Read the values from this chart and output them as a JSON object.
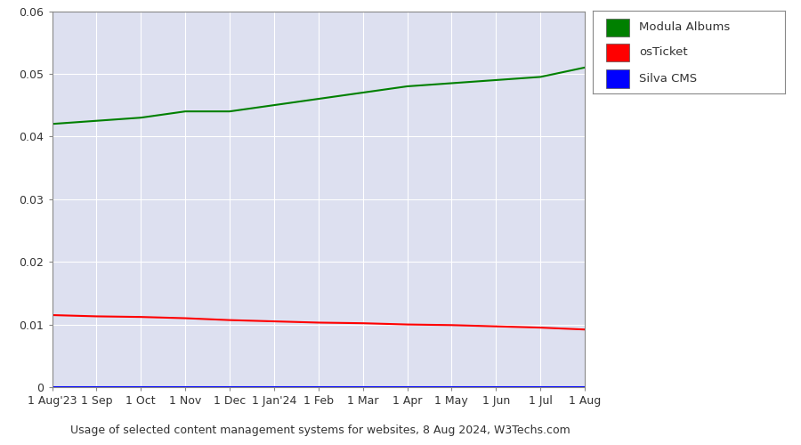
{
  "title": "Usage of selected content management systems for websites, 8 Aug 2024, W3Techs.com",
  "x_labels": [
    "1 Aug'23",
    "1 Sep",
    "1 Oct",
    "1 Nov",
    "1 Dec",
    "1 Jan'24",
    "1 Feb",
    "1 Mar",
    "1 Apr",
    "1 May",
    "1 Jun",
    "1 Jul",
    "1 Aug"
  ],
  "modula_albums": [
    0.042,
    0.0425,
    0.043,
    0.044,
    0.044,
    0.045,
    0.046,
    0.047,
    0.048,
    0.0485,
    0.049,
    0.0495,
    0.051
  ],
  "osticket": [
    0.0115,
    0.0113,
    0.0112,
    0.011,
    0.0107,
    0.0105,
    0.0103,
    0.0102,
    0.01,
    0.0099,
    0.0097,
    0.0095,
    0.0092
  ],
  "silva_cms": [
    0.0,
    0.0,
    0.0,
    0.0,
    0.0,
    0.0,
    0.0,
    0.0,
    0.0,
    0.0,
    0.0,
    0.0,
    0.0
  ],
  "modula_color": "#008000",
  "osticket_color": "#ff0000",
  "silva_color": "#0000ff",
  "bg_color": "#dde0f0",
  "outer_bg_color": "#ffffff",
  "ylim": [
    0,
    0.06
  ],
  "yticks": [
    0,
    0.01,
    0.02,
    0.03,
    0.04,
    0.05,
    0.06
  ],
  "grid_color": "#ffffff",
  "legend_labels": [
    "Modula Albums",
    "osTicket",
    "Silva CMS"
  ]
}
